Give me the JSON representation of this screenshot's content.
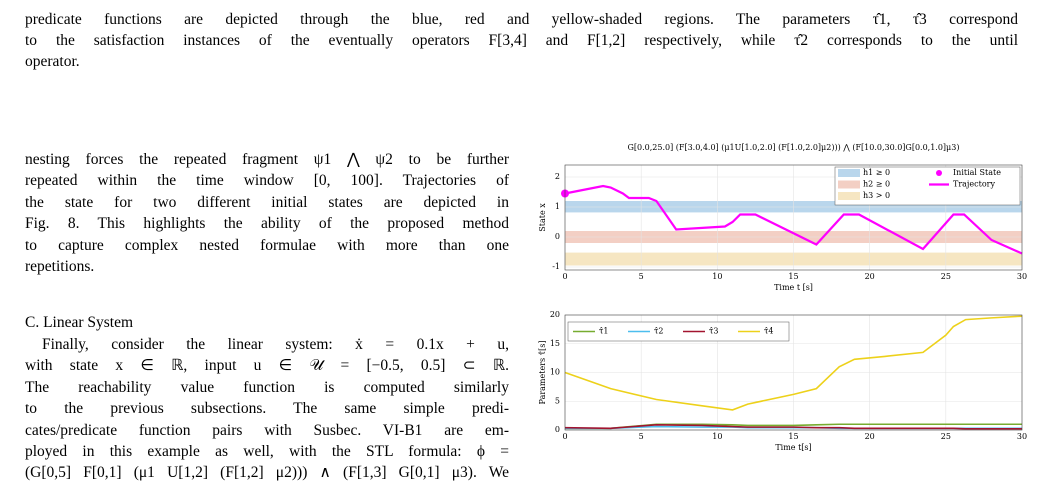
{
  "header": {
    "lines": [
      "predicate functions are depicted through the blue, red and yellow-shaded regions. The parameters τ̂1, τ̂3 correspond",
      "to the satisfaction instances of the eventually operators F[3,4] and F[1,2] respectively, while τ̂2 corresponds to the until",
      "operator."
    ]
  },
  "left_column": {
    "paragraph1": [
      "nesting forces the repeated fragment ψ1 ⋀ ψ2 to be further",
      "repeated within the time window [0, 100]. Trajectories of",
      "the state for two different initial states are depicted in",
      "Fig. 8. This highlights the ability of the proposed method",
      "to capture complex nested formulae with more than one",
      "repetitions."
    ],
    "section_title": "C. Linear System",
    "paragraph2": [
      "Finally, consider the linear system: ẋ = 0.1x + u,",
      "with state x ∈ ℝ, input  u ∈ 𝒰 = [−0.5, 0.5] ⊂ ℝ.",
      "The reachability value function is computed similarly",
      "to the previous subsections. The same simple predi-",
      "cates/predicate function pairs with Susbec. VI-B1 are em-",
      "ployed in this example as well, with the STL formula: ϕ =",
      "(G[0,5] F[0,1] (μ1 U[1,2] (F[1,2] μ2))) ∧ (F[1,3] G[0,1] μ3). We"
    ]
  },
  "figures": [
    {
      "type": "line",
      "title": "G[0.0,25.0] (F[3.0,4.0] (μ1U[1.0,2.0] (F[1.0,2.0]μ2))) ⋀ (F[10.0,30.0]G[0.0,1.0]μ3)",
      "xlabel": "Time t [s]",
      "ylabel": "State x",
      "xlim": [
        0,
        30
      ],
      "ylim": [
        -1.1,
        2.4
      ],
      "xticks": [
        0,
        5,
        10,
        15,
        20,
        25,
        30
      ],
      "yticks": [
        -1,
        0,
        1,
        2
      ],
      "grid": true,
      "legend": "upper right",
      "bands": [
        {
          "name": "h1 ≥ 0",
          "color": "#b9d6ec",
          "range": [
            0.82,
            1.2
          ]
        },
        {
          "name": "h2 ≥ 0",
          "color": "#f3cfc4",
          "range": [
            -0.2,
            0.2
          ]
        },
        {
          "name": "h3 > 0",
          "color": "#f6e6c2",
          "range": [
            -0.95,
            -0.52
          ]
        }
      ],
      "points": [
        {
          "name": "Initial State",
          "color": "#ff00ff",
          "x": 0,
          "y": 1.45
        }
      ],
      "series": [
        {
          "name": "Trajectory",
          "color": "#ff00ff",
          "x": [
            0,
            1,
            2.5,
            3,
            3.8,
            4.2,
            5.5,
            6,
            7.3,
            10.5,
            11,
            11.5,
            12.5,
            16.5,
            18.3,
            19.3,
            23.5,
            25.5,
            26.2,
            28,
            30
          ],
          "values": [
            1.45,
            1.55,
            1.7,
            1.65,
            1.45,
            1.3,
            1.3,
            1.2,
            0.25,
            0.35,
            0.5,
            0.75,
            0.75,
            -0.25,
            0.75,
            0.75,
            -0.4,
            0.75,
            0.75,
            -0.1,
            -0.55
          ]
        }
      ]
    },
    {
      "type": "line",
      "xlabel": "Time t[s]",
      "ylabel": "Parameters τ̂[s]",
      "xlim": [
        0,
        30
      ],
      "ylim": [
        0,
        20
      ],
      "xticks": [
        0,
        5,
        10,
        15,
        20,
        25,
        30
      ],
      "yticks": [
        0,
        5,
        10,
        15,
        20
      ],
      "grid": true,
      "legend": "upper left",
      "x": [
        0,
        3,
        6,
        9,
        11,
        12,
        15,
        16.5,
        18,
        19,
        21,
        23.5,
        25,
        25.5,
        26.3,
        28,
        30
      ],
      "series": [
        {
          "name": "τ̂1",
          "color": "#77ac30",
          "values": [
            0.3,
            0.3,
            1,
            1,
            0.9,
            0.8,
            0.8,
            0.9,
            1,
            1,
            1,
            1,
            1,
            1,
            1,
            1,
            1
          ]
        },
        {
          "name": "τ̂2",
          "color": "#4dbeee",
          "values": [
            0.3,
            0.3,
            0.6,
            0.5,
            0.5,
            0.4,
            0.4,
            0.4,
            0.3,
            0.3,
            0.3,
            0.3,
            0.3,
            0.3,
            0.3,
            0.3,
            0.3
          ]
        },
        {
          "name": "τ̂3",
          "color": "#a2142f",
          "values": [
            0.4,
            0.3,
            0.9,
            0.8,
            0.6,
            0.5,
            0.5,
            0.4,
            0.4,
            0.3,
            0.3,
            0.3,
            0.3,
            0.3,
            0.2,
            0.2,
            0.2
          ]
        },
        {
          "name": "τ̂4",
          "color": "#edd11a",
          "values": [
            10,
            7.2,
            5.3,
            4.2,
            3.5,
            4.5,
            6.2,
            7.2,
            11,
            12.3,
            12.8,
            13.5,
            16.5,
            18,
            19.2,
            19.5,
            19.8
          ]
        }
      ]
    }
  ]
}
